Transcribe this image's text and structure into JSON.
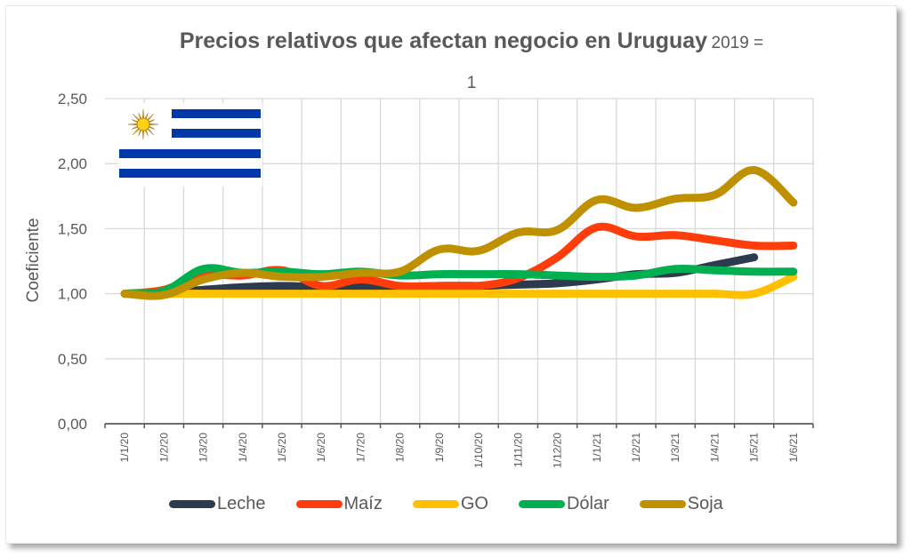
{
  "chart_data": {
    "type": "line",
    "title": "Precios relativos que afectan negocio en Uruguay",
    "subtitle": "2019 = 1",
    "xlabel": "",
    "ylabel": "Coeficiente",
    "ylim": [
      0,
      2.5
    ],
    "yticks": [
      "0,00",
      "0,50",
      "1,00",
      "1,50",
      "2,00",
      "2,50"
    ],
    "ytick_values": [
      0,
      0.5,
      1.0,
      1.5,
      2.0,
      2.5
    ],
    "grid": true,
    "legend_position": "bottom",
    "categories": [
      "1/1/20",
      "1/2/20",
      "1/3/20",
      "1/4/20",
      "1/5/20",
      "1/6/20",
      "1/7/20",
      "1/8/20",
      "1/9/20",
      "1/10/20",
      "1/11/20",
      "1/12/20",
      "1/1/21",
      "1/2/21",
      "1/3/21",
      "1/4/21",
      "1/5/21",
      "1/6/21"
    ],
    "series": [
      {
        "name": "Leche",
        "color": "#2E3A4E",
        "values": [
          1.0,
          1.01,
          1.03,
          1.05,
          1.06,
          1.05,
          1.05,
          1.05,
          1.06,
          1.06,
          1.07,
          1.08,
          1.11,
          1.15,
          1.16,
          1.22,
          1.28,
          null
        ]
      },
      {
        "name": "Maíz",
        "color": "#FF3D0A",
        "values": [
          1.0,
          1.03,
          1.14,
          1.14,
          1.18,
          1.06,
          1.11,
          1.06,
          1.06,
          1.06,
          1.12,
          1.28,
          1.51,
          1.44,
          1.45,
          1.41,
          1.37,
          1.37
        ]
      },
      {
        "name": "GO",
        "color": "#FFC000",
        "values": [
          1.0,
          1.0,
          1.0,
          1.0,
          1.0,
          1.0,
          1.0,
          1.0,
          1.0,
          1.0,
          1.0,
          1.0,
          1.0,
          1.0,
          1.0,
          1.0,
          1.0,
          1.13
        ]
      },
      {
        "name": "Dólar",
        "color": "#00B050",
        "values": [
          1.0,
          1.02,
          1.19,
          1.16,
          1.17,
          1.15,
          1.17,
          1.14,
          1.15,
          1.15,
          1.15,
          1.14,
          1.13,
          1.14,
          1.19,
          1.18,
          1.17,
          1.17
        ]
      },
      {
        "name": "Soja",
        "color": "#BF9000",
        "values": [
          1.0,
          0.99,
          1.11,
          1.16,
          1.13,
          1.13,
          1.16,
          1.17,
          1.34,
          1.33,
          1.47,
          1.49,
          1.72,
          1.66,
          1.73,
          1.76,
          1.95,
          1.7
        ]
      }
    ]
  },
  "title_main": "Precios relativos que afectan negocio en Uruguay",
  "title_sub": "2019 =",
  "title_sub2": "1"
}
